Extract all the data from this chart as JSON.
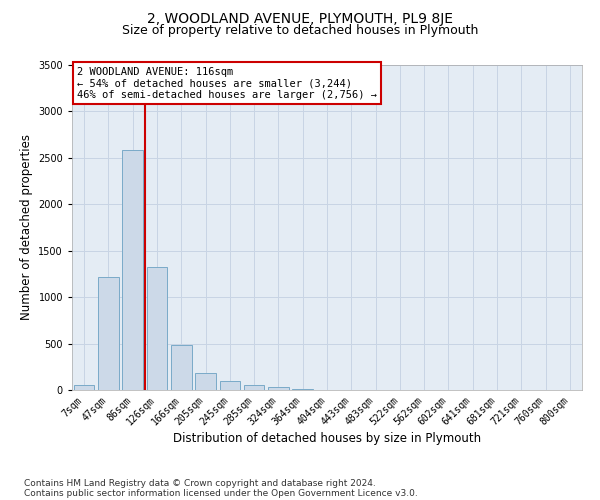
{
  "title": "2, WOODLAND AVENUE, PLYMOUTH, PL9 8JE",
  "subtitle": "Size of property relative to detached houses in Plymouth",
  "xlabel": "Distribution of detached houses by size in Plymouth",
  "ylabel": "Number of detached properties",
  "bar_labels": [
    "7sqm",
    "47sqm",
    "86sqm",
    "126sqm",
    "166sqm",
    "205sqm",
    "245sqm",
    "285sqm",
    "324sqm",
    "364sqm",
    "404sqm",
    "443sqm",
    "483sqm",
    "522sqm",
    "562sqm",
    "602sqm",
    "641sqm",
    "681sqm",
    "721sqm",
    "760sqm",
    "800sqm"
  ],
  "bar_values": [
    50,
    1220,
    2580,
    1330,
    490,
    185,
    100,
    50,
    30,
    10,
    0,
    0,
    0,
    0,
    0,
    0,
    0,
    0,
    0,
    0,
    0
  ],
  "bar_color": "#ccd9e8",
  "bar_edge_color": "#7aaac8",
  "vline_x": 2.5,
  "annotation_text": "2 WOODLAND AVENUE: 116sqm\n← 54% of detached houses are smaller (3,244)\n46% of semi-detached houses are larger (2,756) →",
  "annotation_box_color": "#ffffff",
  "annotation_box_edge": "#cc0000",
  "vline_color": "#cc0000",
  "ylim": [
    0,
    3500
  ],
  "yticks": [
    0,
    500,
    1000,
    1500,
    2000,
    2500,
    3000,
    3500
  ],
  "grid_color": "#c8d4e4",
  "background_color": "#e4ecf4",
  "footer1": "Contains HM Land Registry data © Crown copyright and database right 2024.",
  "footer2": "Contains public sector information licensed under the Open Government Licence v3.0.",
  "title_fontsize": 10,
  "subtitle_fontsize": 9,
  "axis_label_fontsize": 8.5,
  "tick_fontsize": 7,
  "annotation_fontsize": 7.5,
  "footer_fontsize": 6.5
}
